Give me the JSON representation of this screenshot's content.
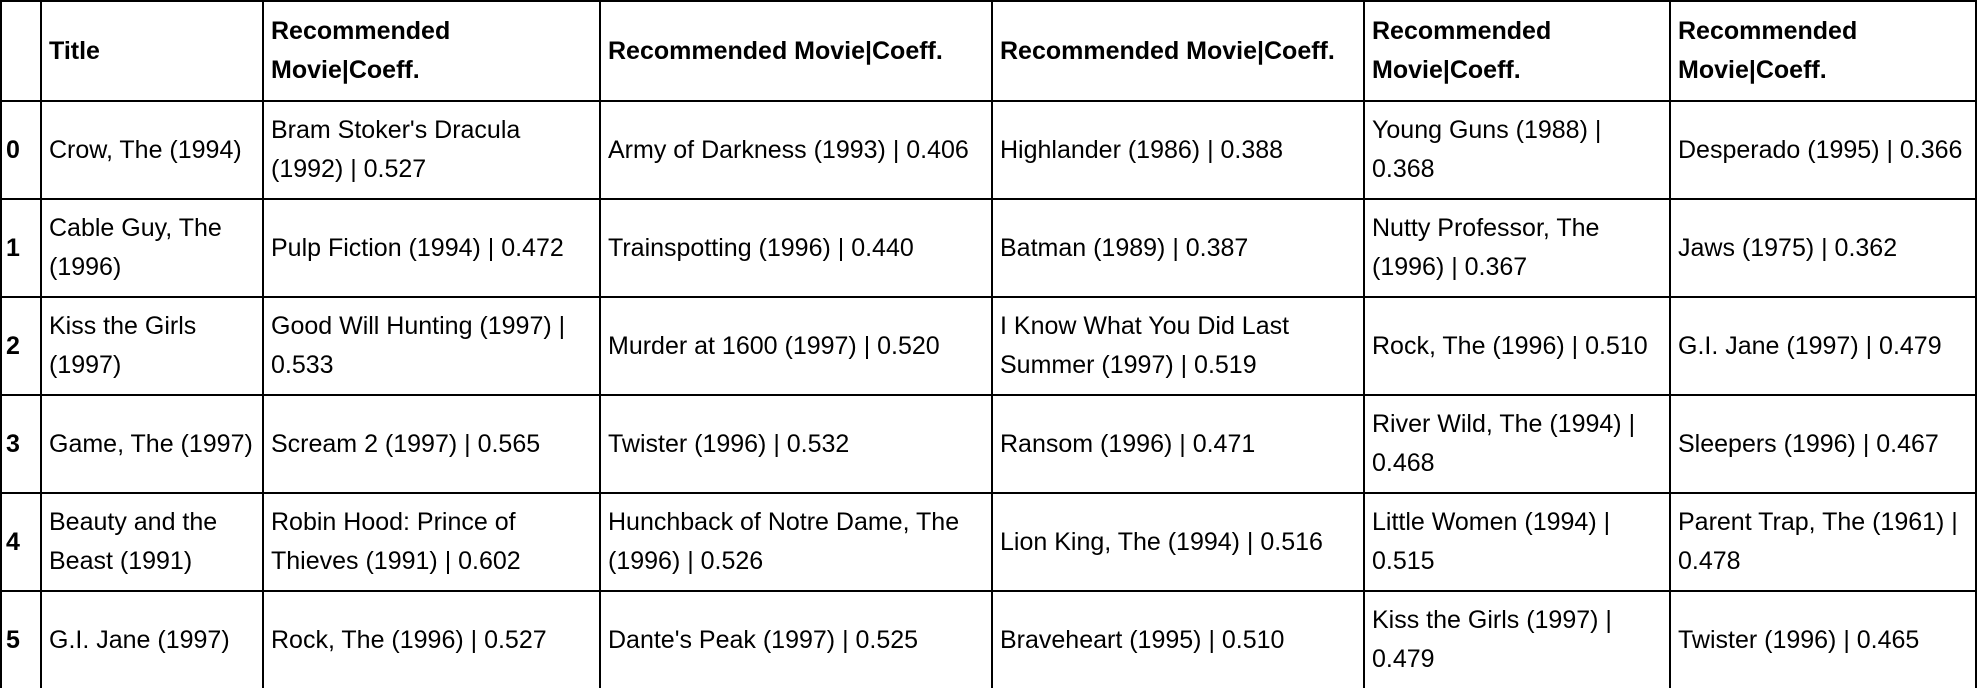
{
  "table": {
    "index_header": "",
    "headers": [
      "Title",
      "Recommended Movie|Coeff.",
      "Recommended Movie|Coeff.",
      "Recommended Movie|Coeff.",
      "Recommended Movie|Coeff.",
      "Recommended Movie|Coeff."
    ],
    "rows": [
      {
        "index": "0",
        "cells": [
          "Crow, The (1994)",
          "Bram Stoker's Dracula (1992) | 0.527",
          "Army of Darkness (1993) | 0.406",
          "Highlander (1986) | 0.388",
          "Young Guns (1988) | 0.368",
          "Desperado (1995) | 0.366"
        ]
      },
      {
        "index": "1",
        "cells": [
          "Cable Guy, The (1996)",
          "Pulp Fiction (1994) | 0.472",
          "Trainspotting (1996) | 0.440",
          "Batman (1989) | 0.387",
          "Nutty Professor, The (1996) | 0.367",
          "Jaws (1975) | 0.362"
        ]
      },
      {
        "index": "2",
        "cells": [
          "Kiss the Girls (1997)",
          "Good Will Hunting (1997) | 0.533",
          "Murder at 1600 (1997) | 0.520",
          "I Know What You Did Last Summer (1997) | 0.519",
          "Rock, The (1996) | 0.510",
          "G.I. Jane (1997) | 0.479"
        ]
      },
      {
        "index": "3",
        "cells": [
          "Game, The (1997)",
          "Scream 2 (1997) | 0.565",
          "Twister (1996) | 0.532",
          "Ransom (1996) | 0.471",
          "River Wild, The (1994) | 0.468",
          "Sleepers (1996) | 0.467"
        ]
      },
      {
        "index": "4",
        "cells": [
          "Beauty and the Beast (1991)",
          "Robin Hood: Prince of Thieves (1991) | 0.602",
          "Hunchback of Notre Dame, The (1996) | 0.526",
          "Lion King, The (1994) | 0.516",
          "Little Women (1994) | 0.515",
          "Parent Trap, The (1961) | 0.478"
        ]
      },
      {
        "index": "5",
        "cells": [
          "G.I. Jane (1997)",
          "Rock, The (1996) | 0.527",
          "Dante's Peak (1997) | 0.525",
          "Braveheart (1995) | 0.510",
          "Kiss the Girls (1997) | 0.479",
          "Twister (1996) | 0.465"
        ]
      }
    ]
  }
}
